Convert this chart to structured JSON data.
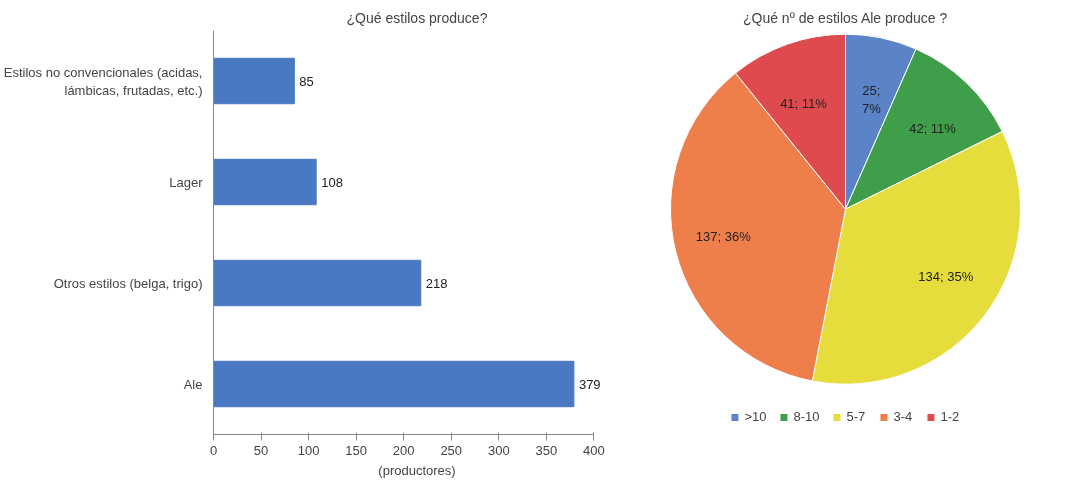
{
  "chart_data": [
    {
      "type": "bar",
      "orientation": "horizontal",
      "title": "¿Qué estilos produce?",
      "xlabel": "(productores)",
      "categories": [
        "Estilos no convencionales (acidas, lámbicas, frutadas, etc.)",
        "Lager",
        "Otros estilos (belga, trigo)",
        "Ale"
      ],
      "values": [
        85,
        108,
        218,
        379
      ],
      "color": "#4a78c2",
      "xlim": [
        0,
        400
      ],
      "xticks": [
        0,
        50,
        100,
        150,
        200,
        250,
        300,
        350,
        400
      ],
      "data_labels": true,
      "grid": false,
      "legend": false
    },
    {
      "type": "pie",
      "title": "¿Qué nº de estilos Ale produce ?",
      "categories": [
        ">10",
        "8-10",
        "5-7",
        "3-4",
        "1-2"
      ],
      "values": [
        25,
        42,
        134,
        137,
        41
      ],
      "colors": [
        "#5b84c8",
        "#3f9e4a",
        "#e6dc3c",
        "#ef7f4a",
        "#df4a4e"
      ],
      "value_labels": [
        "25; 7%",
        "42; 11%",
        "134; 35%",
        "137; 36%",
        "41; 11%"
      ],
      "legend": "bottom"
    }
  ]
}
